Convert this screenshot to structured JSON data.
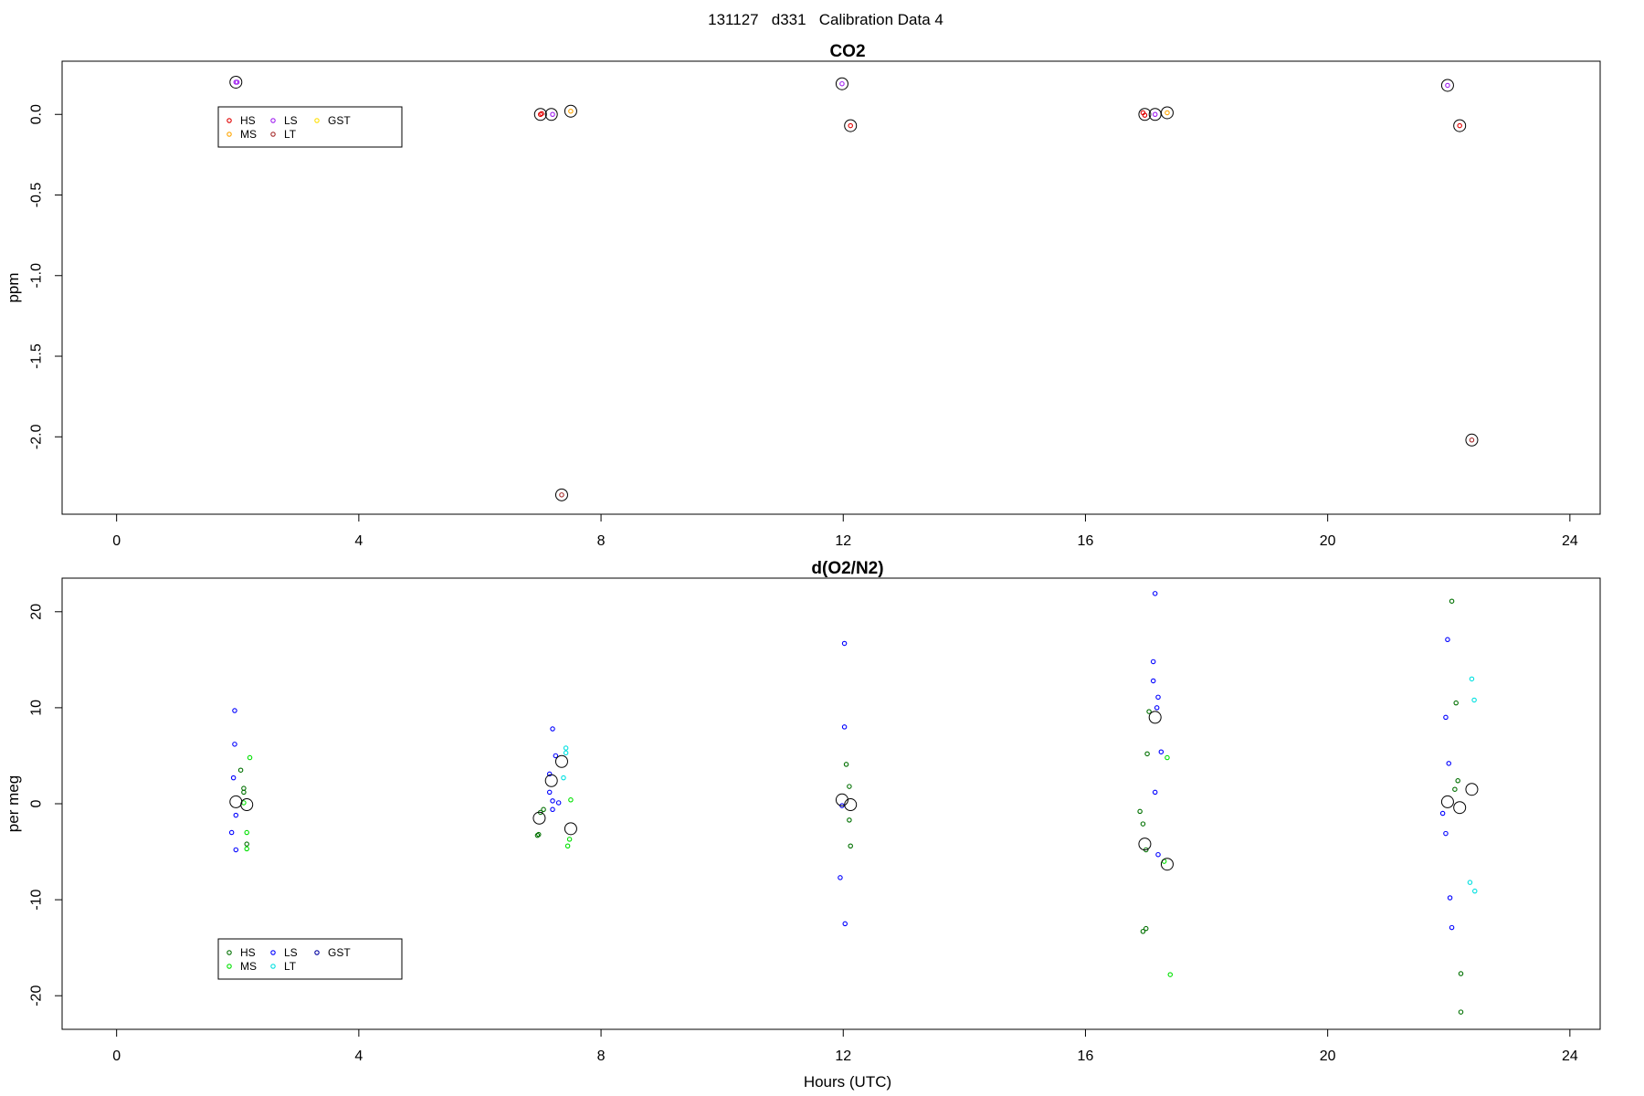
{
  "figure_title": "131127   d331   Calibration Data 4",
  "chart_data": [
    {
      "type": "scatter",
      "title": "CO2",
      "ylabel": "ppm",
      "xlabel": "",
      "xlim": [
        -0.9,
        24.5
      ],
      "ylim": [
        -2.48,
        0.33
      ],
      "xticks": [
        0,
        4,
        8,
        12,
        16,
        20,
        24
      ],
      "yticks": [
        0.0,
        -0.5,
        -1.0,
        -1.5,
        -2.0
      ],
      "ytick_labels": [
        "0.0",
        "-0.5",
        "-1.0",
        "-1.5",
        "-2.0"
      ],
      "legend": {
        "placement": "top-left",
        "entries": [
          {
            "label": "HS",
            "color": "#e00000"
          },
          {
            "label": "MS",
            "color": "#ffa500"
          },
          {
            "label": "LS",
            "color": "#a020f0"
          },
          {
            "label": "LT",
            "color": "#a52a2a"
          },
          {
            "label": "GST",
            "color": "#ffe000"
          }
        ]
      },
      "series": [
        {
          "label": "HS",
          "color": "#e00000",
          "points": [
            [
              7.0,
              0.0
            ],
            [
              7.02,
              0.005
            ],
            [
              16.95,
              0.01
            ],
            [
              16.98,
              -0.005
            ],
            [
              12.12,
              -0.07
            ],
            [
              22.18,
              -0.07
            ]
          ]
        },
        {
          "label": "MS",
          "color": "#ffa500",
          "points": [
            [
              7.5,
              0.02
            ],
            [
              17.35,
              0.01
            ]
          ]
        },
        {
          "label": "LS",
          "color": "#a020f0",
          "points": [
            [
              1.97,
              0.2
            ],
            [
              1.99,
              0.2
            ],
            [
              7.2,
              0.0
            ],
            [
              11.98,
              0.19
            ],
            [
              17.15,
              0.0
            ],
            [
              21.98,
              0.18
            ]
          ]
        },
        {
          "label": "LT",
          "color": "#a52a2a",
          "points": [
            [
              7.35,
              -2.36
            ],
            [
              22.38,
              -2.02
            ]
          ]
        }
      ],
      "means": [
        [
          1.97,
          0.2
        ],
        [
          7.0,
          0.0
        ],
        [
          7.18,
          0.0
        ],
        [
          7.5,
          0.02
        ],
        [
          11.98,
          0.19
        ],
        [
          12.12,
          -0.07
        ],
        [
          16.98,
          0.0
        ],
        [
          17.15,
          0.0
        ],
        [
          17.35,
          0.01
        ],
        [
          21.98,
          0.18
        ],
        [
          22.18,
          -0.07
        ],
        [
          7.35,
          -2.36
        ],
        [
          22.38,
          -2.02
        ]
      ]
    },
    {
      "type": "scatter",
      "title": "d(O2/N2)",
      "ylabel": "per meg",
      "xlabel": "Hours (UTC)",
      "xlim": [
        -0.9,
        24.5
      ],
      "ylim": [
        -23.5,
        23.5
      ],
      "xticks": [
        0,
        4,
        8,
        12,
        16,
        20,
        24
      ],
      "yticks": [
        20,
        10,
        0,
        -10,
        -20
      ],
      "ytick_labels": [
        "20",
        "10",
        "0",
        "-10",
        "-20"
      ],
      "legend": {
        "placement": "bottom-left",
        "entries": [
          {
            "label": "HS",
            "color": "#007000"
          },
          {
            "label": "MS",
            "color": "#00e000"
          },
          {
            "label": "LS",
            "color": "#0000ff"
          },
          {
            "label": "LT",
            "color": "#00e0e0"
          },
          {
            "label": "GST",
            "color": "#0000a0"
          }
        ]
      },
      "series": [
        {
          "label": "HS",
          "color": "#007000",
          "points": [
            [
              2.1,
              1.2
            ],
            [
              2.1,
              1.6
            ],
            [
              2.05,
              3.5
            ],
            [
              2.15,
              -4.2
            ],
            [
              6.97,
              -3.2
            ],
            [
              6.95,
              -3.3
            ],
            [
              7.05,
              -0.6
            ],
            [
              7.0,
              -0.9
            ],
            [
              12.05,
              4.1
            ],
            [
              12.1,
              1.8
            ],
            [
              12.1,
              -1.7
            ],
            [
              12.12,
              -4.4
            ],
            [
              16.95,
              -13.3
            ],
            [
              17.0,
              -13.0
            ],
            [
              16.9,
              -0.8
            ],
            [
              16.95,
              -2.1
            ],
            [
              17.0,
              -4.8
            ],
            [
              17.02,
              5.2
            ],
            [
              17.05,
              9.6
            ],
            [
              22.1,
              1.5
            ],
            [
              22.15,
              2.4
            ],
            [
              22.12,
              10.5
            ],
            [
              22.05,
              21.1
            ],
            [
              22.2,
              -17.7
            ],
            [
              22.2,
              -21.7
            ]
          ]
        },
        {
          "label": "MS",
          "color": "#00e000",
          "points": [
            [
              2.2,
              4.8
            ],
            [
              2.15,
              -3.0
            ],
            [
              2.15,
              -4.7
            ],
            [
              2.1,
              0.1
            ],
            [
              7.5,
              0.4
            ],
            [
              7.48,
              -3.7
            ],
            [
              7.45,
              -4.4
            ],
            [
              17.35,
              4.8
            ],
            [
              17.4,
              -17.8
            ],
            [
              17.3,
              -6.0
            ]
          ]
        },
        {
          "label": "LS",
          "color": "#0000ff",
          "points": [
            [
              1.95,
              9.7
            ],
            [
              1.95,
              6.2
            ],
            [
              1.93,
              2.7
            ],
            [
              1.97,
              -1.2
            ],
            [
              1.9,
              -3.0
            ],
            [
              1.97,
              -4.8
            ],
            [
              7.2,
              7.8
            ],
            [
              7.25,
              5.0
            ],
            [
              7.15,
              3.1
            ],
            [
              7.15,
              1.2
            ],
            [
              7.2,
              0.3
            ],
            [
              7.3,
              0.1
            ],
            [
              7.2,
              -0.6
            ],
            [
              12.02,
              16.7
            ],
            [
              12.02,
              8.0
            ],
            [
              11.95,
              -7.7
            ],
            [
              12.03,
              -12.5
            ],
            [
              11.98,
              -0.2
            ],
            [
              17.15,
              21.9
            ],
            [
              17.12,
              14.8
            ],
            [
              17.12,
              12.8
            ],
            [
              17.2,
              11.1
            ],
            [
              17.18,
              10.0
            ],
            [
              17.25,
              5.4
            ],
            [
              17.15,
              1.2
            ],
            [
              17.2,
              -5.3
            ],
            [
              21.98,
              17.1
            ],
            [
              21.95,
              9.0
            ],
            [
              22.0,
              4.2
            ],
            [
              21.9,
              -1.0
            ],
            [
              21.95,
              -3.1
            ],
            [
              22.02,
              -9.8
            ],
            [
              22.05,
              -12.9
            ]
          ]
        },
        {
          "label": "LT",
          "color": "#00e0e0",
          "points": [
            [
              7.42,
              5.8
            ],
            [
              7.42,
              5.3
            ],
            [
              7.38,
              2.7
            ],
            [
              22.38,
              13.0
            ],
            [
              22.42,
              10.8
            ],
            [
              22.35,
              -8.2
            ],
            [
              22.43,
              -9.1
            ]
          ]
        }
      ],
      "means": [
        [
          1.97,
          0.2
        ],
        [
          2.15,
          -0.1
        ],
        [
          6.98,
          -1.5
        ],
        [
          7.18,
          2.4
        ],
        [
          7.35,
          4.4
        ],
        [
          7.5,
          -2.6
        ],
        [
          11.98,
          0.4
        ],
        [
          12.12,
          -0.1
        ],
        [
          16.98,
          -4.2
        ],
        [
          17.15,
          9.0
        ],
        [
          17.35,
          -6.3
        ],
        [
          21.98,
          0.2
        ],
        [
          22.18,
          -0.4
        ],
        [
          22.38,
          1.5
        ]
      ]
    }
  ]
}
